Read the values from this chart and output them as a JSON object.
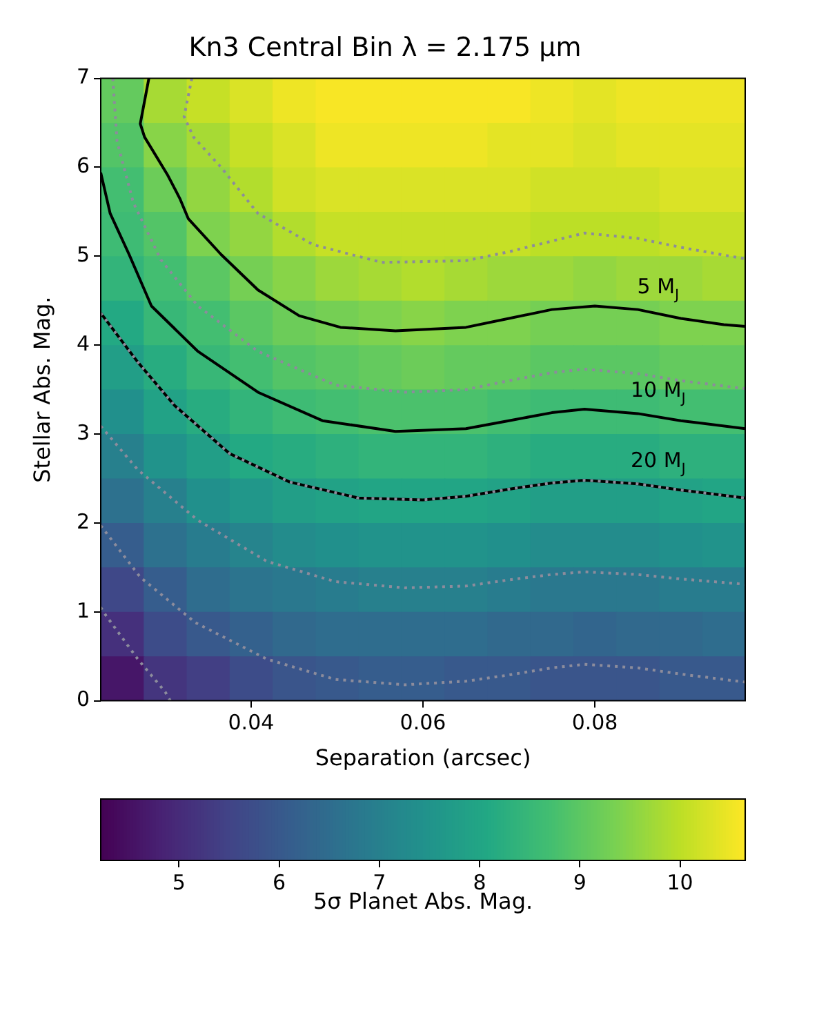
{
  "chart_data": {
    "type": "heatmap",
    "title": "Kn3 Central Bin λ = 2.175 μm",
    "xlabel": "Separation (arcsec)",
    "ylabel": "Stellar Abs. Mag.",
    "clabel": "5σ Planet Abs. Mag.",
    "x": [
      0.025,
      0.03,
      0.035,
      0.04,
      0.045,
      0.05,
      0.055,
      0.06,
      0.065,
      0.07,
      0.075,
      0.08,
      0.085,
      0.09,
      0.095
    ],
    "y": [
      6.75,
      6.25,
      5.75,
      5.25,
      4.75,
      4.25,
      3.75,
      3.25,
      2.75,
      2.25,
      1.75,
      1.25,
      0.75,
      0.25
    ],
    "cells": [
      [
        9.1,
        9.8,
        10.1,
        10.3,
        10.5,
        10.6,
        10.6,
        10.6,
        10.6,
        10.6,
        10.5,
        10.4,
        10.5,
        10.5,
        10.5
      ],
      [
        8.9,
        9.5,
        9.8,
        10.1,
        10.3,
        10.5,
        10.5,
        10.5,
        10.5,
        10.4,
        10.4,
        10.3,
        10.4,
        10.4,
        10.4
      ],
      [
        8.7,
        9.2,
        9.6,
        9.9,
        10.2,
        10.3,
        10.3,
        10.3,
        10.3,
        10.3,
        10.2,
        10.2,
        10.2,
        10.3,
        10.3
      ],
      [
        8.6,
        8.9,
        9.4,
        9.6,
        9.9,
        10.1,
        10.1,
        10.1,
        10.1,
        10.1,
        10.0,
        10.0,
        10.0,
        10.1,
        10.1
      ],
      [
        8.4,
        8.7,
        9.0,
        9.3,
        9.5,
        9.7,
        9.8,
        9.9,
        9.8,
        9.7,
        9.7,
        9.6,
        9.7,
        9.7,
        9.8
      ],
      [
        8.1,
        8.5,
        8.7,
        9.0,
        9.2,
        9.3,
        9.4,
        9.5,
        9.4,
        9.4,
        9.3,
        9.3,
        9.3,
        9.4,
        9.4
      ],
      [
        7.8,
        8.2,
        8.5,
        8.7,
        8.9,
        9.0,
        9.1,
        9.2,
        9.1,
        9.1,
        9.0,
        9.0,
        9.0,
        9.1,
        9.1
      ],
      [
        7.4,
        7.9,
        8.2,
        8.4,
        8.6,
        8.7,
        8.8,
        8.8,
        8.8,
        8.7,
        8.6,
        8.6,
        8.6,
        8.7,
        8.7
      ],
      [
        7.0,
        7.5,
        7.8,
        8.1,
        8.2,
        8.3,
        8.4,
        8.4,
        8.4,
        8.3,
        8.2,
        8.2,
        8.2,
        8.3,
        8.3
      ],
      [
        6.6,
        7.0,
        7.4,
        7.6,
        7.8,
        7.9,
        8.0,
        8.0,
        8.0,
        7.9,
        7.8,
        7.8,
        7.8,
        7.9,
        8.0
      ],
      [
        6.1,
        6.6,
        6.9,
        7.1,
        7.3,
        7.4,
        7.5,
        7.5,
        7.5,
        7.4,
        7.3,
        7.3,
        7.3,
        7.4,
        7.5
      ],
      [
        5.6,
        6.1,
        6.5,
        6.7,
        6.8,
        6.9,
        7.0,
        7.0,
        7.0,
        6.9,
        6.8,
        6.8,
        6.8,
        6.9,
        6.9
      ],
      [
        5.1,
        5.7,
        6.0,
        6.2,
        6.4,
        6.5,
        6.5,
        6.5,
        6.5,
        6.4,
        6.4,
        6.3,
        6.4,
        6.4,
        6.5
      ],
      [
        4.6,
        5.2,
        5.4,
        5.7,
        5.9,
        6.0,
        6.1,
        6.1,
        6.0,
        6.0,
        5.9,
        5.9,
        5.9,
        6.0,
        6.0
      ]
    ],
    "clim": [
      4.22,
      10.65
    ],
    "cticks": [
      5,
      6,
      7,
      8,
      9,
      10
    ],
    "xlim": [
      0.0225,
      0.0975
    ],
    "xticks": [
      0.04,
      0.06,
      0.08
    ],
    "ylim": [
      0,
      7
    ],
    "yticks": [
      0,
      1,
      2,
      3,
      4,
      5,
      6,
      7
    ],
    "marker": "none",
    "series": [
      {
        "type": "line",
        "name": "5 M$_{J}$",
        "color": "#000000",
        "line_style": "solid",
        "x": [
          0.0281,
          0.0271,
          0.0276,
          0.0303,
          0.0317,
          0.0327,
          0.0365,
          0.0408,
          0.0456,
          0.0504,
          0.0568,
          0.065,
          0.07,
          0.075,
          0.08,
          0.085,
          0.09,
          0.095,
          0.0975
        ],
        "values": [
          7,
          6.49,
          6.34,
          5.91,
          5.65,
          5.42,
          5.02,
          4.62,
          4.33,
          4.2,
          4.16,
          4.2,
          4.3,
          4.4,
          4.44,
          4.4,
          4.3,
          4.23,
          4.21
        ]
      },
      {
        "type": "line",
        "name": "10 M$_{J}$",
        "color": "#000000",
        "line_style": "solid",
        "x": [
          0.0225,
          0.0236,
          0.0258,
          0.0284,
          0.0338,
          0.0408,
          0.0483,
          0.0568,
          0.065,
          0.07,
          0.075,
          0.0788,
          0.085,
          0.09,
          0.0975
        ],
        "values": [
          5.94,
          5.48,
          5.02,
          4.44,
          3.93,
          3.47,
          3.15,
          3.03,
          3.06,
          3.15,
          3.24,
          3.28,
          3.23,
          3.15,
          3.06
        ]
      },
      {
        "type": "line",
        "name": "20 M$_{J}$",
        "color": "#000000",
        "line_style": "solid",
        "x": [
          0.0225,
          0.0268,
          0.0311,
          0.0375,
          0.0445,
          0.0525,
          0.06,
          0.065,
          0.07,
          0.075,
          0.0788,
          0.085,
          0.09,
          0.0975
        ],
        "values": [
          4.36,
          3.81,
          3.32,
          2.78,
          2.46,
          2.28,
          2.26,
          2.3,
          2.38,
          2.45,
          2.48,
          2.44,
          2.37,
          2.28
        ]
      },
      {
        "type": "line",
        "color": "#8c8c9c",
        "line_style": "dotted",
        "x": [
          0.0225,
          0.0231,
          0.0268,
          0.03,
          0.0306
        ],
        "values": [
          1.05,
          0.96,
          0.47,
          0.1,
          0
        ]
      },
      {
        "type": "line",
        "color": "#8c8c9c",
        "line_style": "dotted",
        "x": [
          0.0225,
          0.0271,
          0.0335,
          0.0418,
          0.0498,
          0.0579,
          0.065,
          0.07,
          0.075,
          0.0788,
          0.085,
          0.09,
          0.0975
        ],
        "values": [
          1.97,
          1.39,
          0.88,
          0.47,
          0.24,
          0.18,
          0.22,
          0.29,
          0.37,
          0.41,
          0.37,
          0.3,
          0.21
        ]
      },
      {
        "type": "line",
        "color": "#8c8c9c",
        "line_style": "dotted",
        "x": [
          0.0225,
          0.0268,
          0.0338,
          0.0418,
          0.0498,
          0.0579,
          0.065,
          0.07,
          0.075,
          0.0788,
          0.085,
          0.09,
          0.0975
        ],
        "values": [
          3.09,
          2.6,
          2.03,
          1.57,
          1.34,
          1.27,
          1.29,
          1.36,
          1.42,
          1.45,
          1.42,
          1.37,
          1.31
        ]
      },
      {
        "type": "line",
        "color": "#8c8c9c",
        "line_style": "dotted",
        "x": [
          0.0225,
          0.0268,
          0.0311,
          0.0375,
          0.0445,
          0.0525,
          0.06,
          0.065,
          0.07,
          0.075,
          0.0788,
          0.085,
          0.09,
          0.0975
        ],
        "values": [
          4.36,
          3.81,
          3.32,
          2.78,
          2.46,
          2.28,
          2.26,
          2.3,
          2.38,
          2.45,
          2.48,
          2.44,
          2.37,
          2.28
        ]
      },
      {
        "type": "line",
        "color": "#8c8c9c",
        "line_style": "dotted",
        "x": [
          0.0239,
          0.0244,
          0.0263,
          0.0295,
          0.0338,
          0.0408,
          0.0498,
          0.0579,
          0.065,
          0.07,
          0.075,
          0.0788,
          0.085,
          0.09,
          0.0975
        ],
        "values": [
          7,
          6.29,
          5.6,
          4.96,
          4.44,
          3.93,
          3.55,
          3.47,
          3.5,
          3.6,
          3.69,
          3.73,
          3.68,
          3.6,
          3.51
        ]
      },
      {
        "type": "line",
        "color": "#8c8c9c",
        "line_style": "dotted",
        "x": [
          0.0331,
          0.0322,
          0.0333,
          0.0365,
          0.0408,
          0.0472,
          0.0552,
          0.065,
          0.07,
          0.075,
          0.0788,
          0.085,
          0.09,
          0.0975
        ],
        "values": [
          7,
          6.57,
          6.34,
          6.0,
          5.48,
          5.13,
          4.93,
          4.95,
          5.05,
          5.17,
          5.26,
          5.2,
          5.1,
          4.97
        ]
      }
    ]
  }
}
